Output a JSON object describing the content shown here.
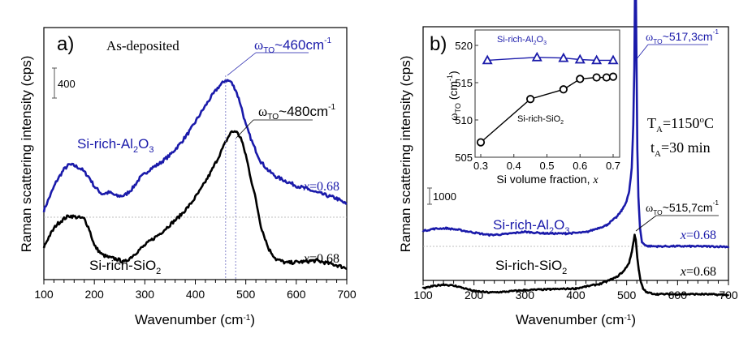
{
  "chart_data": [
    {
      "type": "line",
      "panel_label": "a)",
      "title": "As-deposited",
      "xlabel": "Wavenumber (cm-1)",
      "ylabel": "Raman scattering intensity (cps)",
      "xlim": [
        100,
        700
      ],
      "xticks": [
        100,
        200,
        300,
        400,
        500,
        600,
        700
      ],
      "scale_bar": {
        "label": "400",
        "value_cps": 400
      },
      "series": [
        {
          "name": "Si-rich-Al2O3",
          "label_main": "Si-rich-Al",
          "sub1": "2",
          "label_mid": "O",
          "sub2": "3",
          "color": "#1a1aaa",
          "x_label": "x=0.68",
          "x": [
            100,
            110,
            125,
            140,
            150,
            160,
            175,
            190,
            200,
            215,
            230,
            245,
            260,
            275,
            290,
            310,
            330,
            350,
            370,
            390,
            410,
            430,
            445,
            460,
            470,
            480,
            490,
            500,
            515,
            530,
            545,
            560,
            580,
            600,
            620,
            640,
            660,
            680,
            700
          ],
          "y": [
            90,
            250,
            480,
            640,
            700,
            690,
            640,
            530,
            410,
            310,
            330,
            280,
            290,
            380,
            520,
            640,
            720,
            830,
            980,
            1160,
            1380,
            1590,
            1730,
            1830,
            1810,
            1700,
            1500,
            1230,
            960,
            740,
            620,
            540,
            480,
            420,
            380,
            330,
            290,
            250,
            170
          ]
        },
        {
          "name": "Si-rich-SiO2",
          "label_main": "Si-rich-SiO",
          "sub1": "2",
          "color": "#000000",
          "x_label": "x=0.68",
          "x": [
            100,
            110,
            125,
            140,
            150,
            165,
            180,
            190,
            200,
            215,
            230,
            245,
            260,
            275,
            290,
            310,
            330,
            350,
            370,
            390,
            410,
            430,
            445,
            460,
            470,
            480,
            490,
            500,
            510,
            520,
            530,
            545,
            560,
            580,
            600,
            620,
            640,
            660,
            680,
            700
          ],
          "y": [
            -400,
            -260,
            -100,
            -20,
            20,
            0,
            -20,
            -160,
            -380,
            -500,
            -540,
            -560,
            -600,
            -520,
            -430,
            -320,
            -220,
            -100,
            20,
            170,
            360,
            590,
            790,
            1000,
            1130,
            1150,
            1060,
            830,
            520,
            230,
            -120,
            -420,
            -560,
            -610,
            -600,
            -590,
            -580,
            -610,
            -640,
            -680
          ]
        }
      ],
      "annotations": [
        {
          "text": "~460cm",
          "prefix": "ω",
          "sub": "TO",
          "sup": "-1",
          "color": "#1a1aaa",
          "x": 460
        },
        {
          "text": "~480cm",
          "prefix": "ω",
          "sub": "TO",
          "sup": "-1",
          "color": "#000000",
          "x": 480
        }
      ],
      "reference_baseline": 0
    },
    {
      "type": "line",
      "panel_label": "b)",
      "xlabel": "Wavenumber (cm-1)",
      "ylabel": "Raman scattering intensity (cps)",
      "xlim": [
        100,
        700
      ],
      "xticks": [
        100,
        200,
        300,
        400,
        500,
        600,
        700
      ],
      "scale_bar": {
        "label": "1000",
        "value_cps": 1000
      },
      "conditions": {
        "TA_main": "T",
        "TA_sub": "A",
        "TA_val": "=1150",
        "TA_sup": "o",
        "TA_unit": "C",
        "tA_main": "t",
        "tA_sub": "A",
        "tA_val": "=30 min"
      },
      "series": [
        {
          "name": "Si-rich-Al2O3",
          "label_main": "Si-rich-Al",
          "sub1": "2",
          "label_mid": "O",
          "sub2": "3",
          "color": "#1a1aaa",
          "x_label": "x=0.68",
          "x": [
            100,
            120,
            145,
            170,
            200,
            230,
            260,
            300,
            340,
            380,
            420,
            460,
            480,
            490,
            500,
            505,
            510,
            513,
            515,
            517.3,
            519,
            521,
            523,
            526,
            530,
            540,
            560,
            600,
            650,
            700
          ],
          "y": [
            950,
            1080,
            1120,
            1020,
            850,
            700,
            750,
            900,
            800,
            790,
            870,
            1300,
            1800,
            2200,
            2800,
            3400,
            4800,
            7500,
            11000,
            19200,
            12500,
            6000,
            3100,
            1200,
            250,
            20,
            0,
            10,
            0,
            -20
          ],
          "peak": 517.3
        },
        {
          "name": "Si-rich-SiO2",
          "label_main": "Si-rich-SiO",
          "sub1": "2",
          "color": "#000000",
          "x_label": "x=0.68",
          "x": [
            100,
            120,
            140,
            165,
            200,
            230,
            260,
            300,
            350,
            400,
            450,
            480,
            495,
            505,
            510,
            513,
            515.7,
            518,
            521,
            524,
            527,
            532,
            540,
            560,
            600,
            650,
            700
          ],
          "y": [
            -2600,
            -2450,
            -2350,
            -2450,
            -2750,
            -2850,
            -2800,
            -2700,
            -2650,
            -2600,
            -2300,
            -1900,
            -1500,
            -1000,
            -350,
            200,
            700,
            400,
            -700,
            -1500,
            -2100,
            -2600,
            -2850,
            -2950,
            -2950,
            -2950,
            -3000
          ],
          "peak": 515.7
        }
      ],
      "annotations": [
        {
          "text": "~517,3cm",
          "prefix": "ω",
          "sub": "TO",
          "sup": "-1",
          "color": "#1a1aaa",
          "x": 517.3
        },
        {
          "text": "~515,7cm",
          "prefix": "ω",
          "sub": "TO",
          "sup": "-1",
          "color": "#000000",
          "x": 515.7
        }
      ],
      "reference_baseline": 0,
      "inset": {
        "type": "scatter",
        "xlabel": "Si volume fraction, x",
        "ylabel": "ω TO (cm-1)",
        "xlim": [
          0.28,
          0.72
        ],
        "ylim": [
          505,
          522
        ],
        "xticks": [
          0.3,
          0.4,
          0.5,
          0.6,
          0.7
        ],
        "yticks": [
          505,
          510,
          515,
          520
        ],
        "series": [
          {
            "name": "Si-rich-Al2O3",
            "label_main": "Si-rich-Al",
            "sub1": "2",
            "label_mid": "O",
            "sub2": "3",
            "marker": "triangle",
            "color": "#1a1aaa",
            "x": [
              0.32,
              0.47,
              0.55,
              0.6,
              0.65,
              0.7
            ],
            "y": [
              518.0,
              518.4,
              518.3,
              518.1,
              518.0,
              518.0
            ]
          },
          {
            "name": "Si-rich-SiO2",
            "label_main": "Si-rich-SiO",
            "sub1": "2",
            "marker": "circle",
            "color": "#000000",
            "x": [
              0.3,
              0.45,
              0.55,
              0.6,
              0.65,
              0.68,
              0.7
            ],
            "y": [
              507.0,
              512.8,
              514.1,
              515.5,
              515.7,
              515.7,
              515.8
            ]
          }
        ]
      }
    }
  ]
}
